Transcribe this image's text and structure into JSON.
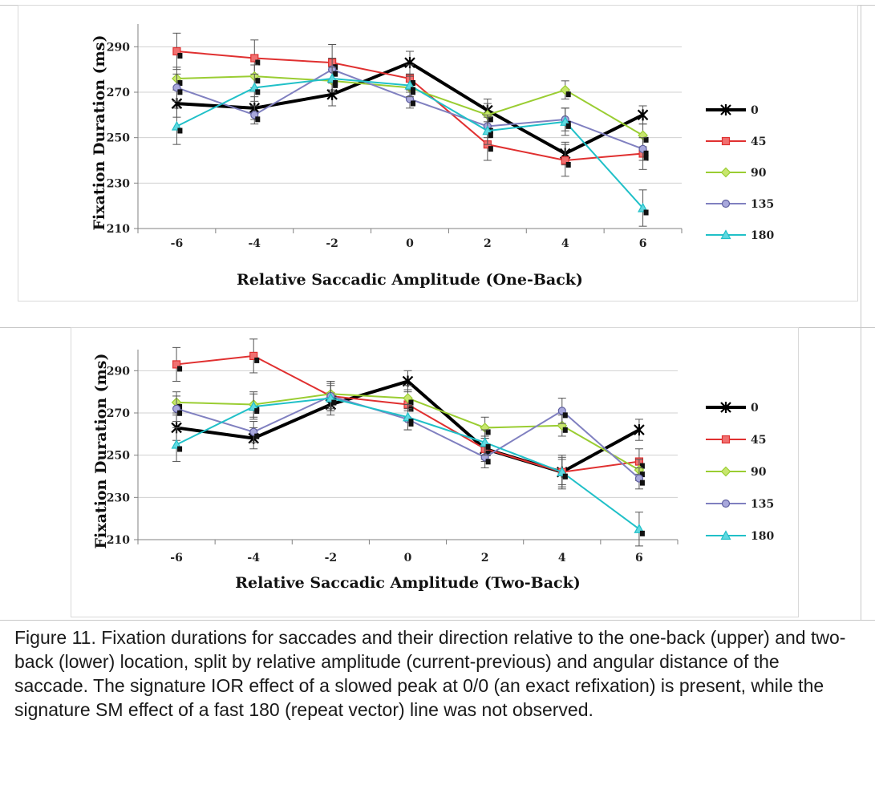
{
  "chart_data": [
    {
      "type": "line",
      "xlabel": "Relative Saccadic Amplitude (One-Back)",
      "ylabel": "Fixation Duration (ms)",
      "categories": [
        "-6",
        "-4",
        "-2",
        "0",
        "2",
        "4",
        "6"
      ],
      "ylim": [
        210,
        300
      ],
      "yticks": [
        "210",
        "230",
        "250",
        "270",
        "290"
      ],
      "grid": true,
      "legend_position": "right",
      "series": [
        {
          "name": "0",
          "color": "#000000",
          "marker": "star",
          "values": [
            265,
            263,
            269,
            283,
            262,
            243,
            260
          ],
          "err": [
            6,
            5,
            5,
            5,
            5,
            5,
            4
          ]
        },
        {
          "name": "45",
          "color": "#e03030",
          "marker": "square",
          "values": [
            288,
            285,
            283,
            276,
            247,
            240,
            243
          ],
          "err": [
            8,
            8,
            8,
            6,
            7,
            7,
            7
          ]
        },
        {
          "name": "90",
          "color": "#9acd32",
          "marker": "diamond",
          "values": [
            276,
            277,
            275,
            272,
            260,
            271,
            251
          ],
          "err": [
            5,
            5,
            5,
            5,
            5,
            4,
            5
          ]
        },
        {
          "name": "135",
          "color": "#8080c0",
          "marker": "circle",
          "values": [
            272,
            260,
            280,
            267,
            255,
            258,
            245
          ],
          "err": [
            6,
            4,
            5,
            4,
            5,
            5,
            5
          ]
        },
        {
          "name": "180",
          "color": "#20c0c8",
          "marker": "triangle",
          "values": [
            255,
            272,
            276,
            273,
            253,
            257,
            219
          ],
          "err": [
            8,
            6,
            5,
            5,
            6,
            6,
            8
          ]
        }
      ]
    },
    {
      "type": "line",
      "xlabel": "Relative Saccadic Amplitude (Two-Back)",
      "ylabel": "Fixation Duration (ms)",
      "categories": [
        "-6",
        "-4",
        "-2",
        "0",
        "2",
        "4",
        "6"
      ],
      "ylim": [
        210,
        300
      ],
      "yticks": [
        "210",
        "230",
        "250",
        "270",
        "290"
      ],
      "grid": true,
      "legend_position": "right",
      "series": [
        {
          "name": "0",
          "color": "#000000",
          "marker": "star",
          "values": [
            263,
            258,
            274,
            285,
            253,
            242,
            262
          ],
          "err": [
            6,
            5,
            5,
            5,
            5,
            8,
            5
          ]
        },
        {
          "name": "45",
          "color": "#e03030",
          "marker": "square",
          "values": [
            293,
            297,
            278,
            274,
            253,
            242,
            247
          ],
          "err": [
            8,
            8,
            7,
            7,
            6,
            6,
            6
          ]
        },
        {
          "name": "90",
          "color": "#9acd32",
          "marker": "diamond",
          "values": [
            275,
            274,
            279,
            277,
            263,
            264,
            243
          ],
          "err": [
            5,
            6,
            6,
            6,
            5,
            5,
            5
          ]
        },
        {
          "name": "135",
          "color": "#8080c0",
          "marker": "circle",
          "values": [
            272,
            261,
            278,
            267,
            249,
            271,
            239
          ],
          "err": [
            6,
            5,
            6,
            5,
            5,
            6,
            5
          ]
        },
        {
          "name": "180",
          "color": "#20c0c8",
          "marker": "triangle",
          "values": [
            255,
            273,
            277,
            268,
            256,
            242,
            215
          ],
          "err": [
            8,
            6,
            6,
            6,
            6,
            7,
            8
          ]
        }
      ]
    }
  ],
  "caption": "Figure 11. Fixation durations for saccades and their direction relative to the one-back (upper) and two-back (lower) location, split by relative amplitude (current-previous) and angular distance of the saccade.  The signature IOR effect of a slowed peak at 0/0 (an exact refixation) is present, while the signature SM effect of a fast 180 (repeat vector) line was not observed."
}
